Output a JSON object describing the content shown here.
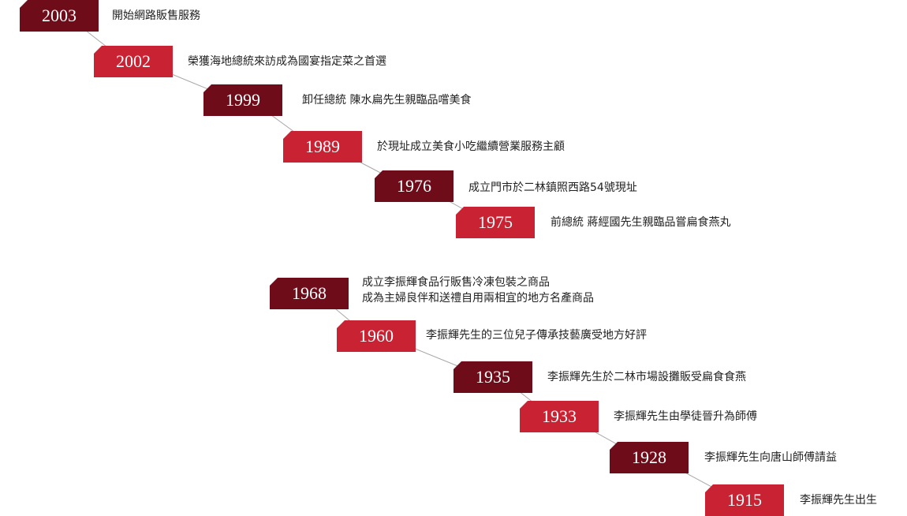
{
  "timeline": {
    "events": [
      {
        "year": "2003",
        "shade": "dark",
        "lines": [
          "開始網路販售服務"
        ]
      },
      {
        "year": "2002",
        "shade": "light",
        "lines": [
          "榮獲海地總統來訪成為國宴指定菜之首選"
        ]
      },
      {
        "year": "1999",
        "shade": "dark",
        "lines": [
          "卸任總統 陳水扁先生親臨品嚐美食"
        ]
      },
      {
        "year": "1989",
        "shade": "light",
        "lines": [
          "於現址成立美食小吃繼續營業服務主顧"
        ]
      },
      {
        "year": "1976",
        "shade": "dark",
        "lines": [
          "成立門市於二林鎮照西路54號現址"
        ]
      },
      {
        "year": "1975",
        "shade": "light",
        "lines": [
          "前總統 蔣經國先生親臨品嘗扁食燕丸"
        ]
      },
      {
        "year": "1968",
        "shade": "dark",
        "lines": [
          "成立李振輝食品行販售冷凍包裝之商品",
          "成為主婦良伴和送禮自用兩相宜的地方名產商品"
        ]
      },
      {
        "year": "1960",
        "shade": "light",
        "lines": [
          "李振輝先生的三位兒子傳承技藝廣受地方好評"
        ]
      },
      {
        "year": "1935",
        "shade": "dark",
        "lines": [
          "李振輝先生於二林市場設攤販受扁食食燕"
        ]
      },
      {
        "year": "1933",
        "shade": "light",
        "lines": [
          "李振輝先生由學徒晉升為師傅"
        ]
      },
      {
        "year": "1928",
        "shade": "dark",
        "lines": [
          "李振輝先生向唐山師傅請益"
        ]
      },
      {
        "year": "1915",
        "shade": "light",
        "lines": [
          "李振輝先生出生"
        ]
      }
    ]
  },
  "colors": {
    "dark": "#6e0d19",
    "light": "#c82233",
    "connector": "#a8a8a8",
    "text": "#222222"
  }
}
